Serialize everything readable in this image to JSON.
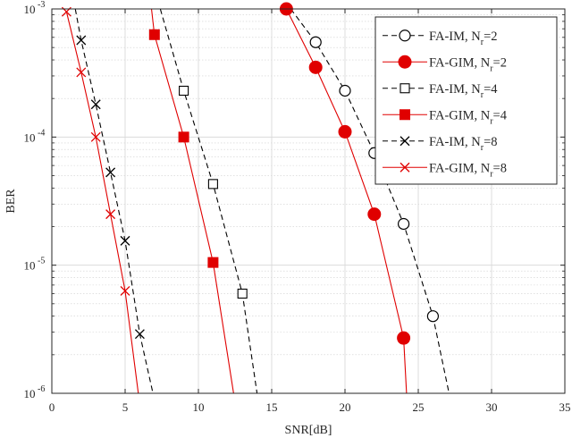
{
  "chart_data": {
    "type": "line",
    "xlabel": "SNR[dB]",
    "ylabel": "BER",
    "xlim": [
      0,
      35
    ],
    "ylim": [
      1e-06,
      0.001
    ],
    "yscale": "log",
    "grid": true,
    "minor_grid": true,
    "legend_position": "top-right",
    "x_ticks": [
      0,
      5,
      10,
      15,
      20,
      25,
      30,
      35
    ],
    "x_tick_labels": [
      "0",
      "5",
      "10",
      "15",
      "20",
      "25",
      "30",
      "35"
    ],
    "y_ticks": [
      1e-06,
      1e-05,
      0.0001,
      0.001
    ],
    "y_tick_labels": [
      {
        "base": "10",
        "exp": "-6"
      },
      {
        "base": "10",
        "exp": "-5"
      },
      {
        "base": "10",
        "exp": "-4"
      },
      {
        "base": "10",
        "exp": "-3"
      }
    ],
    "series": [
      {
        "name": "FA-IM, N_r=2",
        "legend_main": "FA-IM, N",
        "legend_sub": "r",
        "legend_tail": "=2",
        "color": "#000000",
        "line_style": "dashed",
        "marker": "circle-open",
        "x": [
          16.3,
          18,
          20,
          22,
          24,
          26,
          27.1
        ],
        "y": [
          0.001,
          0.00055,
          0.00023,
          7.5e-05,
          2.1e-05,
          4e-06,
          1e-06
        ],
        "markers_x": [
          18,
          20,
          22,
          24,
          26
        ],
        "markers_y": [
          0.00055,
          0.00023,
          7.5e-05,
          2.1e-05,
          4e-06
        ]
      },
      {
        "name": "FA-GIM, N_r=2",
        "legend_main": "FA-GIM, N",
        "legend_sub": "r",
        "legend_tail": "=2",
        "color": "#e00000",
        "line_style": "solid",
        "marker": "circle-filled",
        "x": [
          16,
          18,
          20,
          22,
          24,
          24.2
        ],
        "y": [
          0.001,
          0.00035,
          0.00011,
          2.5e-05,
          2.7e-06,
          1e-06
        ],
        "markers_x": [
          16,
          18,
          20,
          22,
          24
        ],
        "markers_y": [
          0.001,
          0.00035,
          0.00011,
          2.5e-05,
          2.7e-06
        ]
      },
      {
        "name": "FA-IM, N_r=4",
        "legend_main": "FA-IM, N",
        "legend_sub": "r",
        "legend_tail": "=4",
        "color": "#000000",
        "line_style": "dashed",
        "marker": "square-open",
        "x": [
          7.4,
          9,
          11,
          13,
          14
        ],
        "y": [
          0.001,
          0.00023,
          4.3e-05,
          6e-06,
          1e-06
        ],
        "markers_x": [
          9,
          11,
          13
        ],
        "markers_y": [
          0.00023,
          4.3e-05,
          6e-06
        ]
      },
      {
        "name": "FA-GIM, N_r=4",
        "legend_main": "FA-GIM, N",
        "legend_sub": "r",
        "legend_tail": "=4",
        "color": "#e00000",
        "line_style": "solid",
        "marker": "square-filled",
        "x": [
          6.8,
          7,
          9,
          11,
          12.4
        ],
        "y": [
          0.001,
          0.00063,
          0.0001,
          1.05e-05,
          1e-06
        ],
        "markers_x": [
          7,
          9,
          11
        ],
        "markers_y": [
          0.00063,
          0.0001,
          1.05e-05
        ]
      },
      {
        "name": "FA-IM, N_r=8",
        "legend_main": "FA-IM, N",
        "legend_sub": "r",
        "legend_tail": "=8",
        "color": "#000000",
        "line_style": "dashed",
        "marker": "x",
        "x": [
          1.6,
          2,
          3,
          4,
          5,
          6,
          6.9
        ],
        "y": [
          0.001,
          0.00057,
          0.00018,
          5.3e-05,
          1.55e-05,
          2.9e-06,
          1e-06
        ],
        "markers_x": [
          2,
          3,
          4,
          5,
          6
        ],
        "markers_y": [
          0.00057,
          0.00018,
          5.3e-05,
          1.55e-05,
          2.9e-06
        ]
      },
      {
        "name": "FA-GIM, N_r=8",
        "legend_main": "FA-GIM, N",
        "legend_sub": "r",
        "legend_tail": "=8",
        "color": "#e00000",
        "line_style": "solid",
        "marker": "x",
        "x": [
          1,
          2,
          3,
          4,
          5,
          5.9
        ],
        "y": [
          0.00095,
          0.00032,
          0.0001,
          2.5e-05,
          6.3e-06,
          1e-06
        ],
        "markers_x": [
          1,
          2,
          3,
          4,
          5
        ],
        "markers_y": [
          0.00095,
          0.00032,
          0.0001,
          2.5e-05,
          6.3e-06
        ]
      }
    ]
  }
}
